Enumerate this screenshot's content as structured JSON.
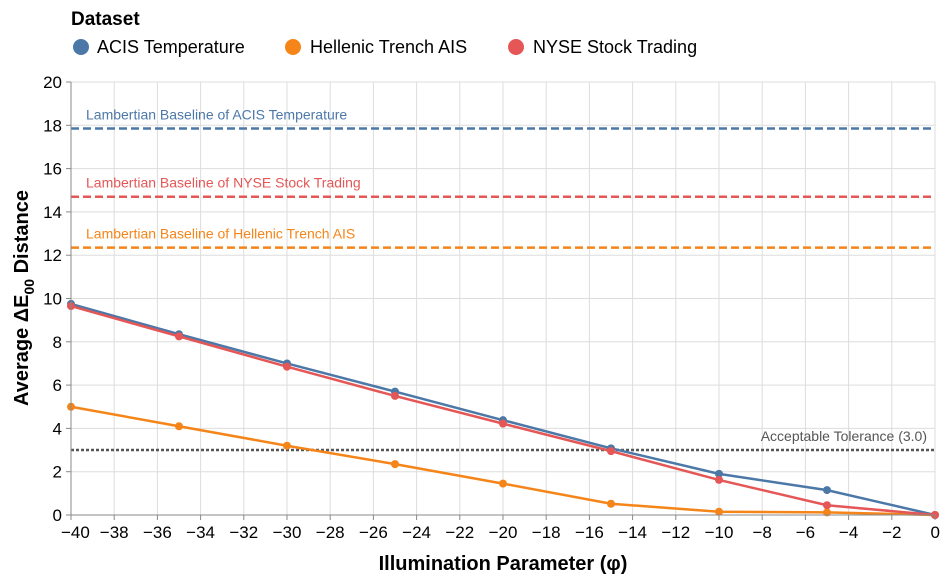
{
  "chart_data": {
    "type": "line",
    "legend": {
      "title": "Dataset",
      "placement": "top-left"
    },
    "xlabel": "Illumination Parameter (φ)",
    "ylabel_main": "Average ΔE",
    "ylabel_sub": "00",
    "ylabel_suffix": " Distance",
    "xlim": [
      -40,
      0
    ],
    "ylim": [
      0,
      20
    ],
    "x_ticks": [
      -40,
      -38,
      -36,
      -34,
      -32,
      -30,
      -28,
      -26,
      -24,
      -22,
      -20,
      -18,
      -16,
      -14,
      -12,
      -10,
      -8,
      -6,
      -4,
      -2,
      0
    ],
    "x_tick_labels": [
      "−40",
      "−38",
      "−36",
      "−34",
      "−32",
      "−30",
      "−28",
      "−26",
      "−24",
      "−22",
      "−20",
      "−18",
      "−16",
      "−14",
      "−12",
      "−10",
      "−8",
      "−6",
      "−4",
      "−2",
      "0"
    ],
    "y_ticks": [
      0,
      2,
      4,
      6,
      8,
      10,
      12,
      14,
      16,
      18,
      20
    ],
    "y_tick_labels": [
      "0",
      "2",
      "4",
      "6",
      "8",
      "10",
      "12",
      "14",
      "16",
      "18",
      "20"
    ],
    "grid": true,
    "x": [
      -40,
      -35,
      -30,
      -25,
      -20,
      -15,
      -10,
      -5,
      0
    ],
    "series": [
      {
        "name": "ACIS Temperature",
        "color": "#4c78a8",
        "values": [
          9.75,
          8.35,
          7.0,
          5.7,
          4.38,
          3.08,
          1.9,
          1.15,
          0.0
        ],
        "baseline": 17.85,
        "baseline_label": "Lambertian Baseline of ACIS Temperature"
      },
      {
        "name": "Hellenic Trench AIS",
        "color": "#f58518",
        "values": [
          5.0,
          4.1,
          3.2,
          2.35,
          1.45,
          0.52,
          0.15,
          0.12,
          0.0
        ],
        "baseline": 12.35,
        "baseline_label": "Lambertian Baseline of Hellenic Trench AIS"
      },
      {
        "name": "NYSE Stock Trading",
        "color": "#e45756",
        "values": [
          9.65,
          8.25,
          6.85,
          5.5,
          4.22,
          2.95,
          1.62,
          0.45,
          0.0
        ],
        "baseline": 14.7,
        "baseline_label": "Lambertian Baseline of NYSE Stock Trading"
      }
    ],
    "tolerance": {
      "value": 3.0,
      "label": "Acceptable Tolerance (3.0)",
      "color": "#555555"
    },
    "colors": {
      "axis": "#888888",
      "grid": "#dddddd"
    }
  }
}
